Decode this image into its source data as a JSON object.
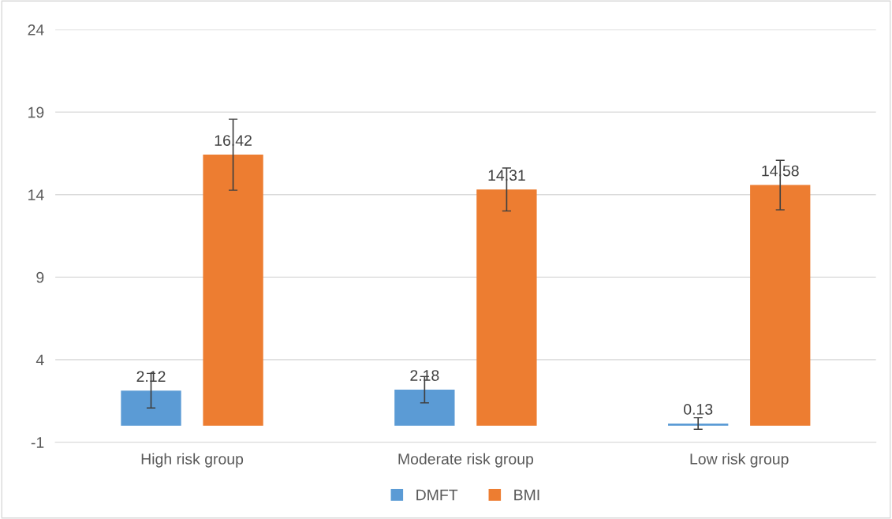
{
  "chart_data": {
    "type": "bar",
    "categories": [
      "High risk group",
      "Moderate risk group",
      "Low risk group"
    ],
    "series": [
      {
        "name": "DMFT",
        "color": "#5b9bd5",
        "values": [
          2.12,
          2.18,
          0.13
        ],
        "errors": [
          1.05,
          0.8,
          0.35
        ]
      },
      {
        "name": "BMI",
        "color": "#ed7d31",
        "values": [
          16.42,
          14.31,
          14.58
        ],
        "errors": [
          2.15,
          1.3,
          1.5
        ]
      }
    ],
    "ylim": [
      -1,
      24
    ],
    "yticks": [
      -1,
      4,
      9,
      14,
      19,
      24
    ],
    "grid": "y",
    "legend": "bottom",
    "data_labels": true
  }
}
